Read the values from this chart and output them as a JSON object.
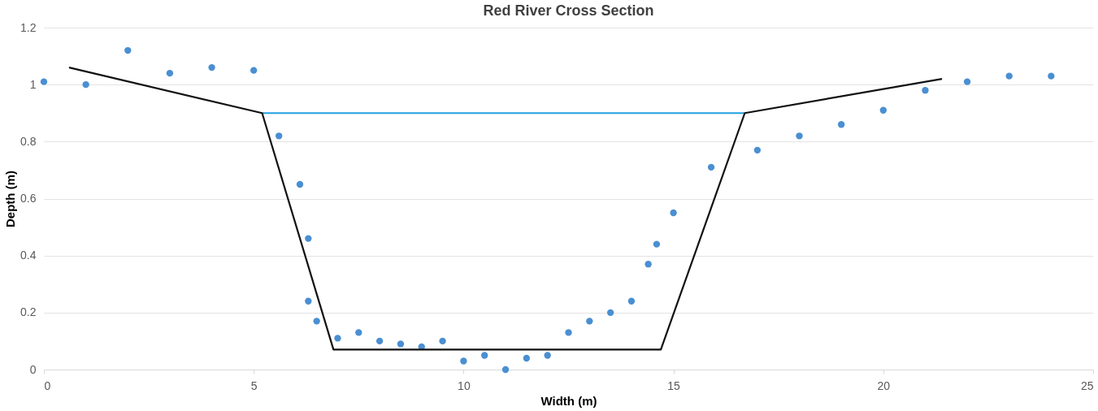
{
  "chart_data": {
    "type": "scatter",
    "title": "Red River Cross Section",
    "xlabel": "Width (m)",
    "ylabel": "Depth (m)",
    "xlim": [
      0,
      25
    ],
    "xticks": [
      0,
      5,
      10,
      15,
      20,
      25
    ],
    "ylim": [
      0,
      1.2
    ],
    "yticks": [
      0,
      0.2,
      0.4,
      0.6,
      0.8,
      1,
      1.2
    ],
    "grid": "y",
    "line_style": "solid",
    "series": [
      {
        "marker": "circle",
        "color": "#4a8fd2",
        "x": [
          0,
          1,
          2,
          3,
          4,
          5,
          5.6,
          6.1,
          6.3,
          6.3,
          6.5,
          7,
          7.5,
          8,
          8.5,
          9,
          9.5,
          10,
          10.5,
          11,
          11.5,
          12,
          12.5,
          13,
          13.5,
          14,
          14.4,
          14.6,
          15,
          15.9,
          17,
          18,
          19,
          20,
          21,
          22,
          23,
          24
        ],
        "values": [
          1.01,
          1.0,
          1.12,
          1.04,
          1.06,
          1.05,
          0.82,
          0.65,
          0.46,
          0.24,
          0.17,
          0.11,
          0.13,
          0.1,
          0.09,
          0.08,
          0.1,
          0.03,
          0.05,
          0.0,
          0.04,
          0.05,
          0.13,
          0.17,
          0.2,
          0.24,
          0.37,
          0.44,
          0.55,
          0.71,
          0.77,
          0.82,
          0.86,
          0.91,
          0.98,
          1.01,
          1.03,
          1.03
        ]
      },
      {
        "type": "line",
        "marker": "none",
        "color": "#1f9fdf",
        "x": [
          5.2,
          16.7
        ],
        "values": [
          0.9,
          0.9
        ]
      },
      {
        "type": "line",
        "marker": "none",
        "color": "#111111",
        "x": [
          0.6,
          5.2,
          6.9,
          14.7,
          16.7,
          21.4
        ],
        "values": [
          1.06,
          0.9,
          0.07,
          0.07,
          0.9,
          1.02
        ]
      }
    ]
  }
}
